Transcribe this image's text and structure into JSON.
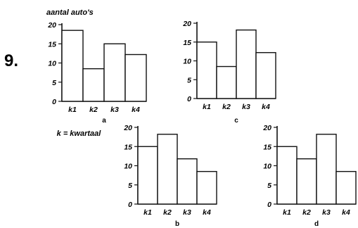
{
  "exercise_number": "9.",
  "ylabel": "aantal auto's",
  "k_note": "k = kwartaal",
  "chart_data": [
    {
      "type": "bar",
      "label": "a",
      "categories": [
        "k1",
        "k2",
        "k3",
        "k4"
      ],
      "values": [
        18.5,
        8.5,
        15,
        12.2
      ],
      "ylim": [
        0,
        20
      ],
      "yticks": [
        0,
        5,
        10,
        15,
        20
      ]
    },
    {
      "type": "bar",
      "label": "c",
      "categories": [
        "k1",
        "k2",
        "k3",
        "k4"
      ],
      "values": [
        15,
        8.5,
        18.2,
        12.2
      ],
      "ylim": [
        0,
        20
      ],
      "yticks": [
        0,
        5,
        10,
        15,
        20
      ]
    },
    {
      "type": "bar",
      "label": "b",
      "categories": [
        "k1",
        "k2",
        "k3",
        "k4"
      ],
      "values": [
        15,
        18.2,
        11.8,
        8.5
      ],
      "ylim": [
        0,
        20
      ],
      "yticks": [
        0,
        5,
        10,
        15,
        20
      ]
    },
    {
      "type": "bar",
      "label": "d",
      "categories": [
        "k1",
        "k2",
        "k3",
        "k4"
      ],
      "values": [
        15,
        11.8,
        18.2,
        8.5
      ],
      "ylim": [
        0,
        20
      ],
      "yticks": [
        0,
        5,
        10,
        15,
        20
      ]
    }
  ]
}
